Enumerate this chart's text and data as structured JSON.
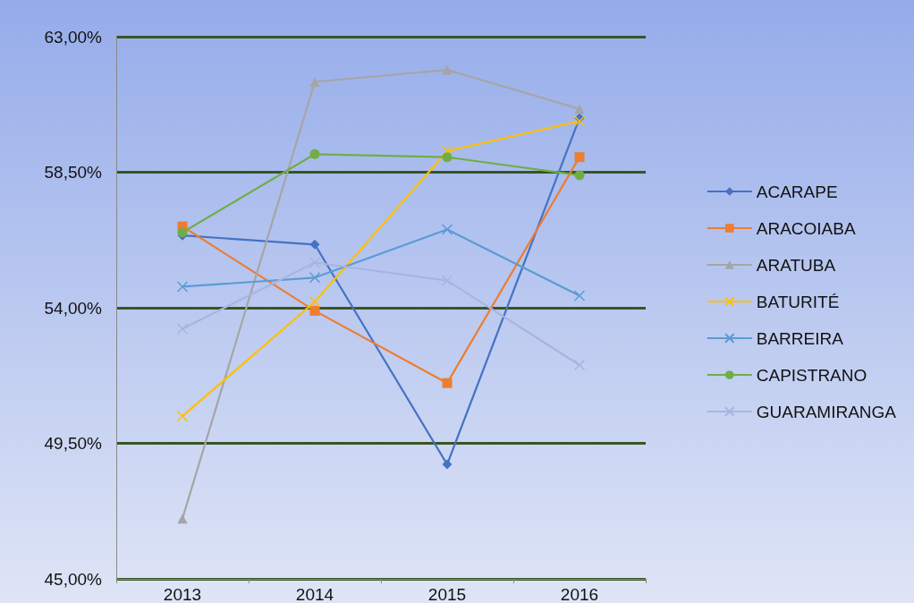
{
  "chart_data": {
    "type": "line",
    "categories": [
      "2013",
      "2014",
      "2015",
      "2016"
    ],
    "series": [
      {
        "name": "ACARAPE",
        "color": "#4472c4",
        "marker": "diamond",
        "values": [
          56.4,
          56.1,
          48.8,
          60.3
        ]
      },
      {
        "name": "ARACOIABA",
        "color": "#ed7d31",
        "marker": "square",
        "values": [
          56.7,
          53.9,
          51.5,
          59.0
        ]
      },
      {
        "name": "ARATUBA",
        "color": "#a5a5a5",
        "marker": "triangle",
        "values": [
          47.0,
          61.5,
          61.9,
          60.6
        ]
      },
      {
        "name": "BATURITÉ",
        "color": "#ffc000",
        "marker": "cross",
        "values": [
          50.4,
          54.2,
          59.2,
          60.2
        ]
      },
      {
        "name": "BARREIRA",
        "color": "#5b9bd5",
        "marker": "cross",
        "values": [
          54.7,
          55.0,
          56.6,
          54.4
        ]
      },
      {
        "name": "CAPISTRANO",
        "color": "#70ad47",
        "marker": "circle",
        "values": [
          56.5,
          59.1,
          59.0,
          58.4
        ]
      },
      {
        "name": "GUARAMIRANGA",
        "color": "#a9b4e0",
        "marker": "cross",
        "values": [
          53.3,
          55.5,
          54.9,
          52.1
        ]
      }
    ],
    "ylim": [
      45,
      63
    ],
    "yticks": [
      {
        "value": 45,
        "label": "45,00%"
      },
      {
        "value": 49.5,
        "label": "49,50%"
      },
      {
        "value": 54,
        "label": "54,00%"
      },
      {
        "value": 58.5,
        "label": "58,50%"
      },
      {
        "value": 63,
        "label": "63,00%"
      }
    ],
    "grid": "y",
    "legend": "right",
    "line_style": "solid"
  }
}
